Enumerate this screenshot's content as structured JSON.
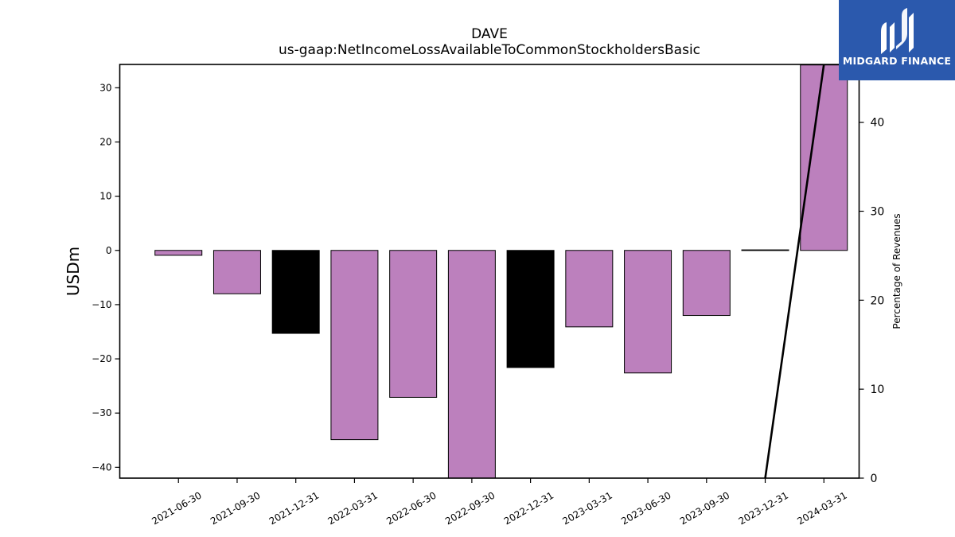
{
  "chart_data": {
    "type": "bar",
    "title": "DAVE",
    "subtitle": "us-gaap:NetIncomeLossAvailableToCommonStockholdersBasic",
    "ylabel": "USDm",
    "y2label": "Percentage of Revenues",
    "categories": [
      "2021-06-30",
      "2021-09-30",
      "2021-12-31",
      "2022-03-31",
      "2022-06-30",
      "2022-09-30",
      "2022-12-31",
      "2023-03-31",
      "2023-06-30",
      "2023-09-30",
      "2023-12-31",
      "2024-03-31"
    ],
    "values": [
      -0.9,
      -8.0,
      -15.3,
      -34.9,
      -27.1,
      -42.0,
      -21.6,
      -14.1,
      -22.6,
      -12.0,
      0.1,
      34.2
    ],
    "bar_colors": [
      "#bc80bd",
      "#bc80bd",
      "#000000",
      "#bc80bd",
      "#bc80bd",
      "#bc80bd",
      "#000000",
      "#bc80bd",
      "#bc80bd",
      "#bc80bd",
      "#000000",
      "#bc80bd"
    ],
    "ylim": [
      -42,
      34.3
    ],
    "yticks": [
      -40,
      -30,
      -20,
      -10,
      0,
      10,
      20,
      30
    ],
    "ytick_labels": [
      "−40",
      "−30",
      "−20",
      "−10",
      "0",
      "10",
      "20",
      "30"
    ],
    "y2lim": [
      0,
      46.5
    ],
    "y2ticks": [
      0,
      10,
      20,
      30,
      40
    ],
    "line_series": {
      "name": "Percentage of Revenues",
      "color": "#000000",
      "points": [
        {
          "x": "2023-12-31",
          "y": 0
        },
        {
          "x": "2024-03-31",
          "y": 46.5
        }
      ]
    },
    "grid": false
  },
  "logo": {
    "text": "MIDGARD FINANCE",
    "background": "#2b59ad"
  }
}
